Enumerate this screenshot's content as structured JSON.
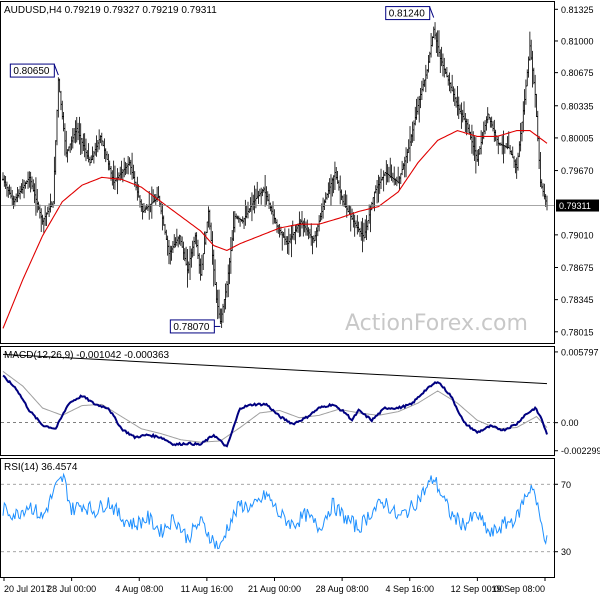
{
  "chart_data": {
    "type": "candlestick",
    "title": "AUDUSD,H4  0.79219 0.79327 0.79219 0.79311",
    "watermark": "ActionForex.com",
    "colors": {
      "bars": "#000000",
      "ma": "#e00000",
      "macd": "#000080",
      "macd_signal": "#a0a0a0",
      "rsi": "#1e90ff",
      "trendline": "#000000",
      "grid": "#888888"
    },
    "x_ticks": [
      "20 Jul 2017",
      "28 Jul 00:00",
      "4 Aug 08:00",
      "11 Aug 16:00",
      "21 Aug 00:00",
      "28 Aug 08:00",
      "4 Sep 16:00",
      "12 Sep 00:00",
      "19 Sep 08:00"
    ],
    "price": {
      "ylim": [
        0.779,
        0.814
      ],
      "y_ticks": [
        "0.81325",
        "0.81000",
        "0.80675",
        "0.80335",
        "0.80005",
        "0.79670",
        "0.79010",
        "0.78675",
        "0.78345",
        "0.78015"
      ],
      "y_tick_values": [
        0.81325,
        0.81,
        0.80675,
        0.80335,
        0.80005,
        0.7967,
        0.7901,
        0.78675,
        0.78345,
        0.78015
      ],
      "current_value": "0.79311",
      "current": 0.79311,
      "annotations": [
        {
          "label": "0.80650",
          "bar": 42,
          "value": 0.8065
        },
        {
          "label": "0.78070",
          "bar": 165,
          "value": 0.7807
        },
        {
          "label": "0.81240",
          "bar": 327,
          "value": 0.8124
        }
      ],
      "anchors": [
        [
          0,
          0.7958
        ],
        [
          8,
          0.7935
        ],
        [
          20,
          0.796
        ],
        [
          30,
          0.7915
        ],
        [
          38,
          0.7935
        ],
        [
          42,
          0.806
        ],
        [
          48,
          0.7985
        ],
        [
          56,
          0.801
        ],
        [
          66,
          0.7975
        ],
        [
          74,
          0.8002
        ],
        [
          84,
          0.7955
        ],
        [
          96,
          0.7975
        ],
        [
          106,
          0.7925
        ],
        [
          118,
          0.794
        ],
        [
          126,
          0.7882
        ],
        [
          134,
          0.79
        ],
        [
          140,
          0.7865
        ],
        [
          146,
          0.79
        ],
        [
          150,
          0.786
        ],
        [
          156,
          0.7925
        ],
        [
          162,
          0.7835
        ],
        [
          165,
          0.7812
        ],
        [
          170,
          0.785
        ],
        [
          176,
          0.792
        ],
        [
          182,
          0.7915
        ],
        [
          190,
          0.7935
        ],
        [
          198,
          0.7948
        ],
        [
          208,
          0.791
        ],
        [
          216,
          0.7892
        ],
        [
          226,
          0.7915
        ],
        [
          236,
          0.7895
        ],
        [
          244,
          0.7935
        ],
        [
          252,
          0.7965
        ],
        [
          258,
          0.7935
        ],
        [
          266,
          0.7915
        ],
        [
          274,
          0.7898
        ],
        [
          282,
          0.7945
        ],
        [
          290,
          0.7965
        ],
        [
          300,
          0.7955
        ],
        [
          308,
          0.799
        ],
        [
          316,
          0.804
        ],
        [
          322,
          0.807
        ],
        [
          327,
          0.8112
        ],
        [
          332,
          0.8082
        ],
        [
          338,
          0.806
        ],
        [
          346,
          0.803
        ],
        [
          352,
          0.8015
        ],
        [
          360,
          0.7978
        ],
        [
          368,
          0.8025
        ],
        [
          376,
          0.7995
        ],
        [
          384,
          0.799
        ],
        [
          390,
          0.797
        ],
        [
          396,
          0.804
        ],
        [
          400,
          0.8095
        ],
        [
          404,
          0.8045
        ],
        [
          408,
          0.7955
        ],
        [
          413,
          0.7931
        ]
      ]
    },
    "price_ma": {
      "anchors": [
        [
          0,
          0.7805
        ],
        [
          15,
          0.7855
        ],
        [
          30,
          0.79
        ],
        [
          45,
          0.7935
        ],
        [
          60,
          0.7952
        ],
        [
          75,
          0.796
        ],
        [
          90,
          0.7958
        ],
        [
          105,
          0.795
        ],
        [
          120,
          0.7935
        ],
        [
          135,
          0.792
        ],
        [
          150,
          0.7905
        ],
        [
          160,
          0.789
        ],
        [
          170,
          0.7885
        ],
        [
          180,
          0.7892
        ],
        [
          195,
          0.79
        ],
        [
          210,
          0.7908
        ],
        [
          225,
          0.7912
        ],
        [
          240,
          0.7912
        ],
        [
          255,
          0.7918
        ],
        [
          270,
          0.7925
        ],
        [
          285,
          0.793
        ],
        [
          300,
          0.7945
        ],
        [
          315,
          0.7975
        ],
        [
          330,
          0.7998
        ],
        [
          345,
          0.8008
        ],
        [
          360,
          0.8002
        ],
        [
          375,
          0.8002
        ],
        [
          390,
          0.8008
        ],
        [
          400,
          0.8008
        ],
        [
          413,
          0.7995
        ]
      ]
    },
    "macd": {
      "label": "MACD(12,26,9) -0.001042 -0.000363",
      "ylim": [
        -0.00265,
        0.0062
      ],
      "y_ticks": [
        "0.005797",
        "0.00",
        "-0.002299"
      ],
      "y_tick_values": [
        0.005797,
        0.0,
        -0.002299
      ],
      "main_anchors": [
        [
          0,
          0.0038
        ],
        [
          10,
          0.0028
        ],
        [
          20,
          0.001
        ],
        [
          30,
          -0.0002
        ],
        [
          40,
          -0.0005
        ],
        [
          50,
          0.0016
        ],
        [
          60,
          0.0022
        ],
        [
          70,
          0.0015
        ],
        [
          80,
          0.0012
        ],
        [
          90,
          -0.0005
        ],
        [
          100,
          -0.0012
        ],
        [
          110,
          -0.001
        ],
        [
          120,
          -0.0012
        ],
        [
          130,
          -0.0018
        ],
        [
          140,
          -0.0017
        ],
        [
          150,
          -0.0018
        ],
        [
          160,
          -0.001
        ],
        [
          170,
          -0.002
        ],
        [
          180,
          0.0012
        ],
        [
          190,
          0.0015
        ],
        [
          200,
          0.0015
        ],
        [
          210,
          0.0005
        ],
        [
          220,
          -0.0001
        ],
        [
          230,
          0.0004
        ],
        [
          240,
          0.0012
        ],
        [
          250,
          0.0015
        ],
        [
          260,
          0.0008
        ],
        [
          265,
          0.0002
        ],
        [
          270,
          0.001
        ],
        [
          280,
          0.0002
        ],
        [
          290,
          0.0012
        ],
        [
          300,
          0.0012
        ],
        [
          310,
          0.0015
        ],
        [
          320,
          0.0026
        ],
        [
          330,
          0.0034
        ],
        [
          340,
          0.0022
        ],
        [
          350,
          0.0
        ],
        [
          360,
          -0.0008
        ],
        [
          370,
          -0.0003
        ],
        [
          380,
          -0.0006
        ],
        [
          390,
          -0.0001
        ],
        [
          396,
          0.0006
        ],
        [
          404,
          0.0012
        ],
        [
          409,
          0.0003
        ],
        [
          413,
          -0.001
        ]
      ],
      "signal_anchors": [
        [
          0,
          0.0042
        ],
        [
          15,
          0.003
        ],
        [
          30,
          0.0012
        ],
        [
          45,
          0.0006
        ],
        [
          60,
          0.0014
        ],
        [
          75,
          0.0015
        ],
        [
          90,
          0.0005
        ],
        [
          105,
          -0.0005
        ],
        [
          120,
          -0.0009
        ],
        [
          135,
          -0.0014
        ],
        [
          150,
          -0.0016
        ],
        [
          165,
          -0.0015
        ],
        [
          180,
          -0.0004
        ],
        [
          195,
          0.0008
        ],
        [
          210,
          0.001
        ],
        [
          225,
          0.0004
        ],
        [
          240,
          0.0006
        ],
        [
          255,
          0.0011
        ],
        [
          270,
          0.0008
        ],
        [
          285,
          0.0006
        ],
        [
          300,
          0.0009
        ],
        [
          315,
          0.0016
        ],
        [
          330,
          0.0026
        ],
        [
          345,
          0.0016
        ],
        [
          360,
          0.0002
        ],
        [
          375,
          -0.0005
        ],
        [
          390,
          -0.0004
        ],
        [
          405,
          0.0005
        ],
        [
          413,
          -0.0004
        ]
      ],
      "trend_from": [
        0,
        0.0056
      ],
      "trend_to": [
        413,
        0.0032
      ]
    },
    "rsi": {
      "label": "RSI(14) 36.4574",
      "ylim": [
        15,
        85
      ],
      "y_ticks": [
        "70",
        "30"
      ],
      "y_tick_values": [
        70,
        30
      ],
      "anchors": [
        [
          0,
          55
        ],
        [
          10,
          52
        ],
        [
          20,
          58
        ],
        [
          30,
          50
        ],
        [
          40,
          68
        ],
        [
          46,
          74
        ],
        [
          52,
          55
        ],
        [
          60,
          58
        ],
        [
          70,
          54
        ],
        [
          80,
          60
        ],
        [
          90,
          50
        ],
        [
          100,
          46
        ],
        [
          110,
          50
        ],
        [
          120,
          42
        ],
        [
          130,
          50
        ],
        [
          140,
          38
        ],
        [
          150,
          48
        ],
        [
          160,
          36
        ],
        [
          165,
          32
        ],
        [
          170,
          44
        ],
        [
          180,
          58
        ],
        [
          190,
          56
        ],
        [
          200,
          64
        ],
        [
          210,
          52
        ],
        [
          220,
          46
        ],
        [
          230,
          52
        ],
        [
          240,
          44
        ],
        [
          250,
          58
        ],
        [
          260,
          50
        ],
        [
          270,
          44
        ],
        [
          280,
          54
        ],
        [
          290,
          60
        ],
        [
          300,
          50
        ],
        [
          310,
          56
        ],
        [
          320,
          66
        ],
        [
          327,
          74
        ],
        [
          334,
          62
        ],
        [
          340,
          52
        ],
        [
          350,
          46
        ],
        [
          360,
          52
        ],
        [
          370,
          40
        ],
        [
          380,
          46
        ],
        [
          390,
          50
        ],
        [
          396,
          62
        ],
        [
          402,
          70
        ],
        [
          408,
          48
        ],
        [
          413,
          36
        ]
      ]
    }
  }
}
